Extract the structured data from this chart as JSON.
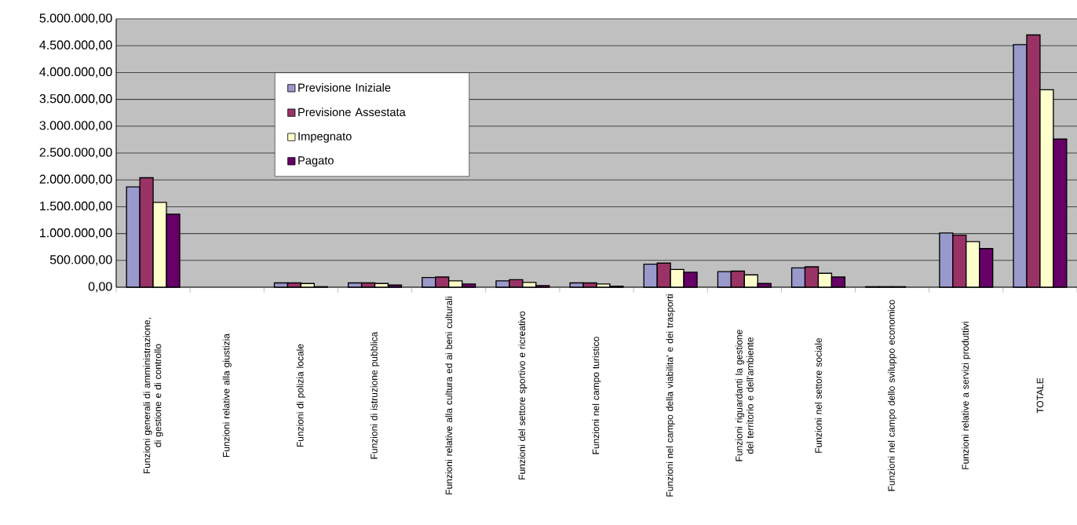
{
  "chart_data": {
    "type": "bar",
    "categories": [
      "Funzioni generali di amministrazione, di gestione e di controllo",
      "Funzioni relative alla giustizia",
      "Funzioni di polizia locale",
      "Funzioni di istruzione pubblica",
      "Funzioni relative alla cultura ed ai beni culturali",
      "Funzioni del settore sportivo e ricreativo",
      "Funzioni nel campo turistico",
      "Funzioni nel campo della viabilita' e dei trasporti",
      "Funzioni riguardanti la gestione del territorio e dell'ambiente",
      "Funzioni nel settore sociale",
      "Funzioni nel campo dello sviluppo economico",
      "Funzioni relative a servizi produttivi",
      "TOTALE"
    ],
    "series": [
      {
        "name": "Previsione Iniziale",
        "color": "#9999cc",
        "values": [
          1870000,
          null,
          80000,
          80000,
          180000,
          120000,
          80000,
          430000,
          290000,
          360000,
          10000,
          1010000,
          4520000
        ]
      },
      {
        "name": "Previsione Assestata",
        "color": "#993366",
        "values": [
          2040000,
          null,
          80000,
          80000,
          190000,
          140000,
          80000,
          450000,
          300000,
          380000,
          10000,
          970000,
          4700000
        ]
      },
      {
        "name": "Impegnato",
        "color": "#ffffcc",
        "values": [
          1580000,
          null,
          70000,
          70000,
          120000,
          90000,
          60000,
          330000,
          230000,
          260000,
          10000,
          850000,
          3680000
        ]
      },
      {
        "name": "Pagato",
        "color": "#660066",
        "values": [
          1360000,
          null,
          10000,
          40000,
          60000,
          30000,
          20000,
          280000,
          70000,
          190000,
          null,
          720000,
          2760000
        ]
      }
    ],
    "ylim": [
      0,
      5000000
    ],
    "yticks": [
      {
        "value": 0,
        "label": "0,00"
      },
      {
        "value": 500000,
        "label": "500.000,00"
      },
      {
        "value": 1000000,
        "label": "1.000.000,00"
      },
      {
        "value": 1500000,
        "label": "1.500.000,00"
      },
      {
        "value": 2000000,
        "label": "2.000.000,00"
      },
      {
        "value": 2500000,
        "label": "2.500.000,00"
      },
      {
        "value": 3000000,
        "label": "3.000.000,00"
      },
      {
        "value": 3500000,
        "label": "3.500.000,00"
      },
      {
        "value": 4000000,
        "label": "4.000.000,00"
      },
      {
        "value": 4500000,
        "label": "4.500.000,00"
      },
      {
        "value": 5000000,
        "label": "5.000.000,00"
      }
    ],
    "grid": "y",
    "legend": "top left"
  }
}
